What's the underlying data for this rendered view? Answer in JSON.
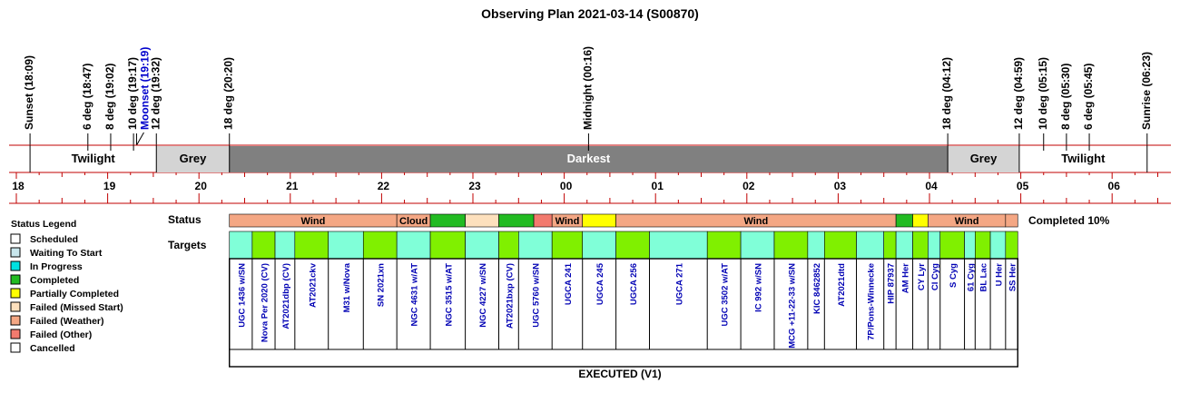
{
  "title": "Observing Plan 2021-03-14 (S00870)",
  "events": [
    {
      "label": "Sunset (18:09)",
      "time": "18:09"
    },
    {
      "label": "6 deg (18:47)",
      "time": "18:47"
    },
    {
      "label": "8 deg (19:02)",
      "time": "19:02"
    },
    {
      "label": "10 deg (19:17)",
      "time": "19:17"
    },
    {
      "label": "Moonset (19:19)",
      "time": "19:19",
      "color": "#0000cc"
    },
    {
      "label": "12 deg (19:32)",
      "time": "19:32"
    },
    {
      "label": "18 deg (20:20)",
      "time": "20:20"
    },
    {
      "label": "Midnight (00:16)",
      "time": "00:16"
    },
    {
      "label": "18 deg (04:12)",
      "time": "04:12"
    },
    {
      "label": "12 deg (04:59)",
      "time": "04:59"
    },
    {
      "label": "10 deg (05:15)",
      "time": "05:15"
    },
    {
      "label": "8 deg (05:30)",
      "time": "05:30"
    },
    {
      "label": "6 deg (05:45)",
      "time": "05:45"
    },
    {
      "label": "Sunrise (06:23)",
      "time": "06:23"
    }
  ],
  "bands": [
    {
      "label": "Twilight",
      "start": "18:09",
      "end": "19:32",
      "color": "#ffffff"
    },
    {
      "label": "Grey",
      "start": "19:32",
      "end": "20:20",
      "color": "#d4d4d4"
    },
    {
      "label": "Darkest",
      "start": "20:20",
      "end": "04:12",
      "color": "#808080",
      "text_color": "#ffffff"
    },
    {
      "label": "Grey",
      "start": "04:12",
      "end": "04:59",
      "color": "#d4d4d4"
    },
    {
      "label": "Twilight",
      "start": "04:59",
      "end": "06:23",
      "color": "#ffffff"
    }
  ],
  "hours": [
    "18",
    "19",
    "20",
    "21",
    "22",
    "23",
    "00",
    "01",
    "02",
    "03",
    "04",
    "05",
    "06"
  ],
  "legend": {
    "title": "Status Legend",
    "items": [
      {
        "label": "Scheduled",
        "color": "#ffffff"
      },
      {
        "label": "Waiting To Start",
        "color": "#c8e6ec"
      },
      {
        "label": "In Progress",
        "color": "#00e0e0"
      },
      {
        "label": "Completed",
        "color": "#22bb22"
      },
      {
        "label": "Partially Completed",
        "color": "#ffff00"
      },
      {
        "label": "Failed (Missed Start)",
        "color": "#fde0bd"
      },
      {
        "label": "Failed (Weather)",
        "color": "#f4a784"
      },
      {
        "label": "Failed (Other)",
        "color": "#f27a6e"
      },
      {
        "label": "Cancelled",
        "color": "#ffffff"
      }
    ]
  },
  "rows": {
    "status": "Status",
    "targets": "Targets"
  },
  "completed": "Completed 10%",
  "status_segments": [
    {
      "label": "Wind",
      "start": "20:20",
      "end": "22:10",
      "color": "#f4a784"
    },
    {
      "label": "Cloud",
      "start": "22:10",
      "end": "22:32",
      "color": "#f4a784"
    },
    {
      "label": "",
      "start": "22:32",
      "end": "22:55",
      "color": "#22bb22"
    },
    {
      "label": "",
      "start": "22:55",
      "end": "23:17",
      "color": "#fde0bd"
    },
    {
      "label": "",
      "start": "23:17",
      "end": "23:40",
      "color": "#22bb22"
    },
    {
      "label": "",
      "start": "23:40",
      "end": "23:52",
      "color": "#f27a6e"
    },
    {
      "label": "Wind",
      "start": "23:52",
      "end": "00:12",
      "color": "#f4a784"
    },
    {
      "label": "",
      "start": "00:12",
      "end": "00:34",
      "color": "#ffff00"
    },
    {
      "label": "Wind",
      "start": "00:34",
      "end": "03:38",
      "color": "#f4a784"
    },
    {
      "label": "",
      "start": "03:38",
      "end": "03:49",
      "color": "#22bb22"
    },
    {
      "label": "",
      "start": "03:49",
      "end": "03:59",
      "color": "#ffff00"
    },
    {
      "label": "Wind",
      "start": "03:59",
      "end": "04:50",
      "color": "#f4a784"
    },
    {
      "label": "",
      "start": "04:50",
      "end": "04:58",
      "color": "#f4a784"
    }
  ],
  "targets": [
    {
      "name": "UGC 1436 w/SN",
      "start": "20:20",
      "end": "20:35",
      "color": "#80ffd8"
    },
    {
      "name": "Nova Per 2020 (CV)",
      "start": "20:35",
      "end": "20:50",
      "color": "#80f000"
    },
    {
      "name": "AT2021dbp (CV)",
      "start": "20:50",
      "end": "21:03",
      "color": "#80ffd8"
    },
    {
      "name": "AT2021ckv",
      "start": "21:03",
      "end": "21:25",
      "color": "#80f000"
    },
    {
      "name": "M31 w/Nova",
      "start": "21:25",
      "end": "21:48",
      "color": "#80ffd8"
    },
    {
      "name": "SN 2021xn",
      "start": "21:48",
      "end": "22:10",
      "color": "#80f000"
    },
    {
      "name": "NGC 4631 w/AT",
      "start": "22:10",
      "end": "22:32",
      "color": "#80ffd8"
    },
    {
      "name": "NGC 3515 w/AT",
      "start": "22:32",
      "end": "22:55",
      "color": "#80f000"
    },
    {
      "name": "NGC 4227 w/SN",
      "start": "22:55",
      "end": "23:17",
      "color": "#80ffd8"
    },
    {
      "name": "AT2021bxp (CV)",
      "start": "23:17",
      "end": "23:30",
      "color": "#80f000"
    },
    {
      "name": "UGC 5760 w/SN",
      "start": "23:30",
      "end": "23:52",
      "color": "#80ffd8"
    },
    {
      "name": "UGCA 241",
      "start": "23:52",
      "end": "00:12",
      "color": "#80f000"
    },
    {
      "name": "UGCA 245",
      "start": "00:12",
      "end": "00:34",
      "color": "#80ffd8"
    },
    {
      "name": "UGCA 256",
      "start": "00:34",
      "end": "00:56",
      "color": "#80f000"
    },
    {
      "name": "UGCA 271",
      "start": "00:56",
      "end": "01:34",
      "color": "#80ffd8"
    },
    {
      "name": "UGC 3502 w/AT",
      "start": "01:34",
      "end": "01:56",
      "color": "#80f000"
    },
    {
      "name": "IC 992 w/SN",
      "start": "01:56",
      "end": "02:18",
      "color": "#80ffd8"
    },
    {
      "name": "MCG +11-22-33 w/SN",
      "start": "02:18",
      "end": "02:40",
      "color": "#80f000"
    },
    {
      "name": "KIC 8462852",
      "start": "02:40",
      "end": "02:51",
      "color": "#80ffd8"
    },
    {
      "name": "AT2021dtd",
      "start": "02:51",
      "end": "03:12",
      "color": "#80f000"
    },
    {
      "name": "7P/Pons-Winnecke",
      "start": "03:12",
      "end": "03:30",
      "color": "#80ffd8"
    },
    {
      "name": "HIP 87937",
      "start": "03:30",
      "end": "03:38",
      "color": "#80f000"
    },
    {
      "name": "AM Her",
      "start": "03:38",
      "end": "03:49",
      "color": "#80ffd8"
    },
    {
      "name": "CY Lyr",
      "start": "03:49",
      "end": "03:59",
      "color": "#80f000"
    },
    {
      "name": "CI Cyg",
      "start": "03:59",
      "end": "04:07",
      "color": "#80ffd8"
    },
    {
      "name": "S Cyg",
      "start": "04:07",
      "end": "04:23",
      "color": "#80f000"
    },
    {
      "name": "61 Cyg",
      "start": "04:23",
      "end": "04:30",
      "color": "#80ffd8"
    },
    {
      "name": "BL Lac",
      "start": "04:30",
      "end": "04:40",
      "color": "#80f000"
    },
    {
      "name": "U Her",
      "start": "04:40",
      "end": "04:50",
      "color": "#80ffd8"
    },
    {
      "name": "SS Her",
      "start": "04:50",
      "end": "04:58",
      "color": "#80f000"
    }
  ],
  "footer": "EXECUTED (V1)"
}
